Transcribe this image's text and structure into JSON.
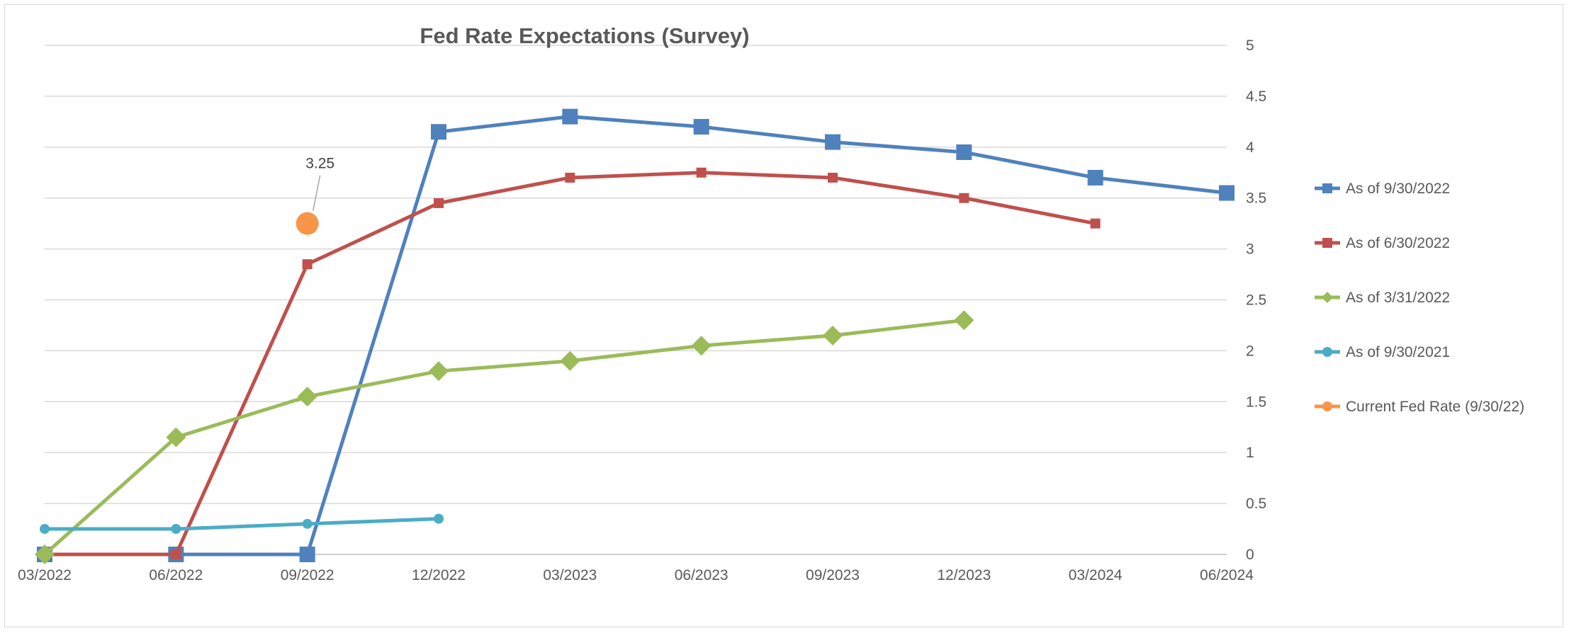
{
  "chart_data": {
    "type": "line",
    "title": "Fed Rate Expectations (Survey)",
    "categories": [
      "03/2022",
      "06/2022",
      "09/2022",
      "12/2022",
      "03/2023",
      "06/2023",
      "09/2023",
      "12/2023",
      "03/2024",
      "06/2024"
    ],
    "y_axis": {
      "position": "right",
      "ylim": [
        0,
        5
      ],
      "ticks": [
        "0",
        "0.5",
        "1",
        "1.5",
        "2",
        "2.5",
        "3",
        "3.5",
        "4",
        "4.5",
        "5"
      ]
    },
    "grid": true,
    "legend_position": "right",
    "series": [
      {
        "name": "As of 9/30/2022",
        "color": "#4f81bd",
        "marker": "square-large",
        "values": [
          0,
          0,
          0,
          4.15,
          4.3,
          4.2,
          4.05,
          3.95,
          3.7,
          3.55
        ]
      },
      {
        "name": "As of 6/30/2022",
        "color": "#c0504d",
        "marker": "square-small",
        "values": [
          0,
          0,
          2.85,
          3.45,
          3.7,
          3.75,
          3.7,
          3.5,
          3.25,
          null
        ]
      },
      {
        "name": "As of 3/31/2022",
        "color": "#9bbb59",
        "marker": "diamond",
        "values": [
          0,
          1.15,
          1.55,
          1.8,
          1.9,
          2.05,
          2.15,
          2.3,
          null,
          null
        ]
      },
      {
        "name": "As of 9/30/2021",
        "color": "#4bacc6",
        "marker": "circle-small",
        "values": [
          0.25,
          0.25,
          0.3,
          0.35,
          null,
          null,
          null,
          null,
          null,
          null
        ]
      },
      {
        "name": "Current Fed Rate (9/30/22)",
        "color": "#f79646",
        "marker": "circle-large",
        "values": [
          null,
          null,
          3.25,
          null,
          null,
          null,
          null,
          null,
          null,
          null
        ]
      }
    ],
    "annotations": [
      {
        "series": "Current Fed Rate (9/30/22)",
        "category": "09/2022",
        "text": "3.25"
      }
    ]
  }
}
